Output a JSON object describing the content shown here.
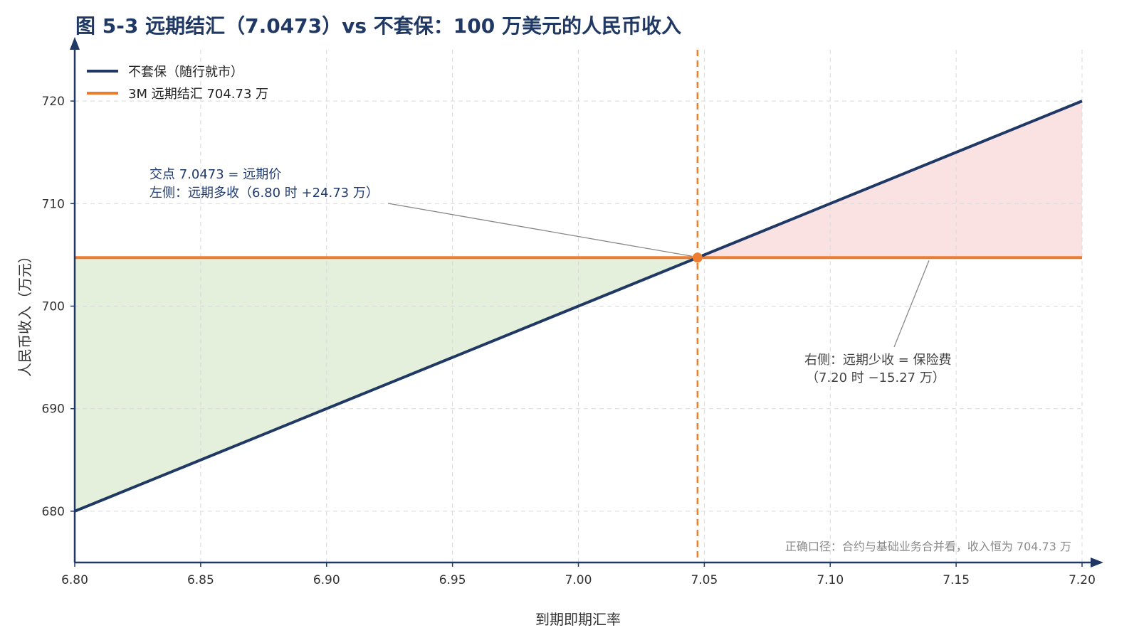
{
  "chart_data": {
    "type": "line",
    "title": "图 5-3 远期结汇（7.0473）vs 不套保：100 万美元的人民币收入",
    "xlabel": "到期即期汇率",
    "ylabel": "人民币收入（万元）",
    "xlim": [
      6.8,
      7.2
    ],
    "ylim": [
      675,
      725
    ],
    "x_ticks": [
      6.8,
      6.85,
      6.9,
      6.95,
      7.0,
      7.05,
      7.1,
      7.15,
      7.2
    ],
    "x_tick_labels": [
      "6.80",
      "6.85",
      "6.90",
      "6.95",
      "7.00",
      "7.05",
      "7.10",
      "7.15",
      "7.20"
    ],
    "y_ticks": [
      680,
      690,
      700,
      710,
      720
    ],
    "y_tick_labels": [
      "680",
      "690",
      "700",
      "710",
      "720"
    ],
    "grid": true,
    "legend_position": "top-left",
    "series": [
      {
        "name": "不套保（随行就市）",
        "color": "#1f3864",
        "x": [
          6.8,
          7.2
        ],
        "y": [
          680,
          720
        ]
      },
      {
        "name": "3M 远期结汇 704.73 万",
        "color": "#ed7d31",
        "x": [
          6.8,
          7.2
        ],
        "y": [
          704.73,
          704.73
        ]
      }
    ],
    "forward_rate": 7.0473,
    "forward_income": 704.73,
    "fill_left_color": "#e4efdc",
    "fill_right_color": "#fbe2e2",
    "annotations": {
      "left_line1": "交点 7.0473 = 远期价",
      "left_line2": "左侧：远期多收（6.80 时 +24.73 万）",
      "right_line1": "右侧：远期少收 = 保险费",
      "right_line2": "（7.20 时 −15.27 万）",
      "footer": "正确口径：合约与基础业务合并看，收入恒为 704.73 万"
    }
  }
}
